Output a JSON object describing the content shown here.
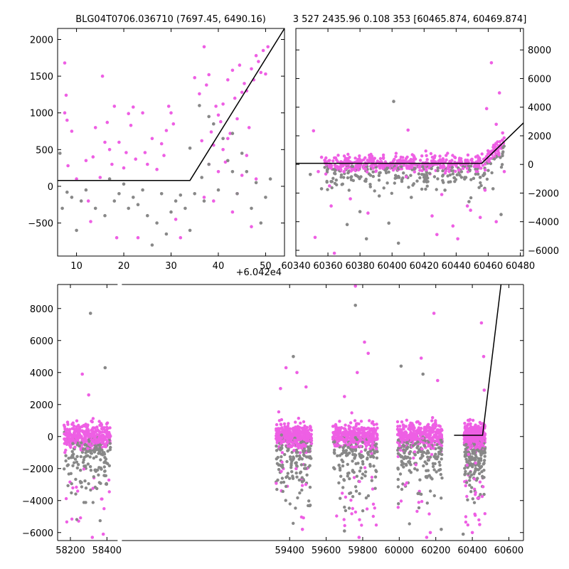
{
  "titles": {
    "left": "BLG04T0706.036710 (7697.45, 6490.16)",
    "right": "3 527 2435.96 0.108 353 [60465.874, 60469.874]"
  },
  "colors": {
    "primary": "#ee5fe4",
    "secondary": "#888888",
    "model": "#000000"
  },
  "chart_data": [
    {
      "type": "scatter",
      "panel": "zoom-left",
      "title": "BLG04T0706.036710 (7697.45, 6490.16)",
      "x_offset_label": "+6.042e4",
      "xlim": [
        6,
        54
      ],
      "ylim": [
        -950,
        2150
      ],
      "xticks": [
        10,
        20,
        30,
        40,
        50
      ],
      "xtick_labels": [
        "10",
        "20",
        "30",
        "40",
        "50"
      ],
      "yticks": [
        -500,
        0,
        500,
        1000,
        1500,
        2000
      ],
      "ytick_labels": [
        "−500",
        "0",
        "500",
        "1000",
        "1500",
        "2000"
      ],
      "model_line": {
        "x": [
          6,
          34,
          54
        ],
        "y": [
          80,
          80,
          2150
        ]
      },
      "series": [
        {
          "color": "#ee5fe4",
          "points": [
            [
              7.5,
              1680
            ],
            [
              7.5,
              1000
            ],
            [
              7.8,
              1240
            ],
            [
              8,
              900
            ],
            [
              8.2,
              280
            ],
            [
              9,
              750
            ],
            [
              10,
              100
            ],
            [
              12,
              350
            ],
            [
              12.5,
              -200
            ],
            [
              13,
              -480
            ],
            [
              13.5,
              400
            ],
            [
              14,
              800
            ],
            [
              15,
              120
            ],
            [
              15.5,
              1500
            ],
            [
              16,
              600
            ],
            [
              16.5,
              870
            ],
            [
              17,
              500
            ],
            [
              17.5,
              300
            ],
            [
              18,
              1090
            ],
            [
              18.5,
              -700
            ],
            [
              19,
              600
            ],
            [
              20,
              250
            ],
            [
              20.5,
              460
            ],
            [
              21,
              990
            ],
            [
              21.5,
              830
            ],
            [
              22,
              1080
            ],
            [
              22.5,
              370
            ],
            [
              23,
              -700
            ],
            [
              24,
              1000
            ],
            [
              24.5,
              460
            ],
            [
              25,
              300
            ],
            [
              26,
              650
            ],
            [
              27,
              230
            ],
            [
              28,
              580
            ],
            [
              28.5,
              420
            ],
            [
              29,
              760
            ],
            [
              29.5,
              1090
            ],
            [
              30,
              1000
            ],
            [
              30.5,
              850
            ],
            [
              31,
              -450
            ],
            [
              32,
              -700
            ],
            [
              35,
              1480
            ],
            [
              36,
              1260
            ],
            [
              36.5,
              620
            ],
            [
              37,
              1900
            ],
            [
              37.5,
              1380
            ],
            [
              38,
              1520
            ],
            [
              38.5,
              740
            ],
            [
              39,
              560
            ],
            [
              39.5,
              1090
            ],
            [
              40,
              970
            ],
            [
              40.5,
              880
            ],
            [
              41,
              1120
            ],
            [
              41.5,
              330
            ],
            [
              42,
              1450
            ],
            [
              42.5,
              720
            ],
            [
              43,
              1580
            ],
            [
              43.5,
              1200
            ],
            [
              44,
              920
            ],
            [
              44.5,
              1650
            ],
            [
              45,
              1280
            ],
            [
              45.5,
              1400
            ],
            [
              46,
              1300
            ],
            [
              46.5,
              800
            ],
            [
              47,
              1600
            ],
            [
              47.5,
              1450
            ],
            [
              48,
              1780
            ],
            [
              48.5,
              1700
            ],
            [
              49,
              1550
            ],
            [
              49.5,
              1850
            ],
            [
              50,
              1530
            ],
            [
              50.5,
              1900
            ],
            [
              38,
              300
            ],
            [
              39,
              -200
            ],
            [
              41,
              500
            ],
            [
              43,
              -350
            ],
            [
              45,
              150
            ],
            [
              47,
              -550
            ],
            [
              48,
              100
            ],
            [
              46,
              420
            ],
            [
              40,
              200
            ],
            [
              37,
              -150
            ],
            [
              42,
              650
            ],
            [
              44,
              -100
            ]
          ]
        },
        {
          "color": "#888888",
          "points": [
            [
              6.5,
              450
            ],
            [
              7,
              -300
            ],
            [
              8,
              -80
            ],
            [
              9,
              -150
            ],
            [
              10,
              -600
            ],
            [
              11,
              -200
            ],
            [
              12,
              -50
            ],
            [
              14,
              -300
            ],
            [
              16,
              -400
            ],
            [
              17,
              100
            ],
            [
              18,
              -200
            ],
            [
              19,
              -100
            ],
            [
              20,
              30
            ],
            [
              21,
              -300
            ],
            [
              22,
              -150
            ],
            [
              23,
              -250
            ],
            [
              24,
              -50
            ],
            [
              25,
              -400
            ],
            [
              26,
              -800
            ],
            [
              27,
              -500
            ],
            [
              28,
              -100
            ],
            [
              29,
              -650
            ],
            [
              30,
              -350
            ],
            [
              31,
              -200
            ],
            [
              32,
              -120
            ],
            [
              33,
              -300
            ],
            [
              34,
              -600
            ],
            [
              35,
              -100
            ],
            [
              36,
              1100
            ],
            [
              36.5,
              120
            ],
            [
              37,
              -200
            ],
            [
              38,
              300
            ],
            [
              39,
              850
            ],
            [
              40,
              -50
            ],
            [
              41,
              650
            ],
            [
              42,
              350
            ],
            [
              43,
              200
            ],
            [
              44,
              -100
            ],
            [
              45,
              450
            ],
            [
              46,
              200
            ],
            [
              47,
              -300
            ],
            [
              48,
              50
            ],
            [
              49,
              -500
            ],
            [
              50,
              -150
            ],
            [
              51,
              100
            ],
            [
              34,
              520
            ],
            [
              38,
              950
            ],
            [
              43,
              720
            ]
          ]
        }
      ]
    },
    {
      "type": "scatter",
      "panel": "zoom-right",
      "title": "3 527 2435.96 0.108 353 [60465.874, 60469.874]",
      "xlim": [
        60340,
        60482
      ],
      "ylim": [
        -6400,
        9500
      ],
      "xticks": [
        60340,
        60360,
        60380,
        60400,
        60420,
        60440,
        60460,
        60480
      ],
      "xtick_labels": [
        "60340",
        "60360",
        "60380",
        "60400",
        "60420",
        "60440",
        "60460",
        "60480"
      ],
      "yticks": [
        -6000,
        -4000,
        -2000,
        0,
        2000,
        4000,
        6000,
        8000
      ],
      "ytick_labels": [
        "−6000",
        "−4000",
        "−2000",
        "0",
        "2000",
        "4000",
        "6000",
        "8000"
      ],
      "y_axis_side": "right",
      "model_line": {
        "x": [
          60340,
          60456,
          60482
        ],
        "y": [
          80,
          80,
          2900
        ]
      },
      "series": [
        {
          "color": "#ee5fe4",
          "points": [
            [
              60351,
              2350
            ],
            [
              60352,
              -5100
            ],
            [
              60354,
              -500
            ],
            [
              60356,
              500
            ],
            [
              60358,
              300
            ],
            [
              60361,
              -1500
            ],
            [
              60362,
              -2900
            ],
            [
              60364,
              -6200
            ],
            [
              60370,
              -500
            ],
            [
              60374,
              -2400
            ],
            [
              60385,
              -3400
            ],
            [
              60410,
              2400
            ],
            [
              60425,
              -3600
            ],
            [
              60428,
              -4900
            ],
            [
              60431,
              -2100
            ],
            [
              60438,
              -4300
            ],
            [
              60441,
              -5200
            ],
            [
              60447,
              -2900
            ],
            [
              60449,
              -3200
            ],
            [
              60455,
              -3700
            ],
            [
              60459,
              3900
            ],
            [
              60462,
              7100
            ],
            [
              60465,
              2800
            ],
            [
              60467,
              5000
            ],
            [
              60469,
              2200
            ],
            [
              60470,
              -500
            ],
            [
              60458,
              -1800
            ],
            [
              60465,
              -4000
            ]
          ]
        },
        {
          "color": "#888888",
          "points": [
            [
              60349,
              -700
            ],
            [
              60356,
              -1700
            ],
            [
              60362,
              -1200
            ],
            [
              60372,
              -4200
            ],
            [
              60380,
              -3300
            ],
            [
              60384,
              -5200
            ],
            [
              60392,
              -2200
            ],
            [
              60398,
              -4100
            ],
            [
              60401,
              4400
            ],
            [
              60404,
              -5500
            ],
            [
              60412,
              -2300
            ],
            [
              60420,
              -1200
            ],
            [
              60433,
              -1800
            ],
            [
              60448,
              -2600
            ],
            [
              60455,
              -900
            ],
            [
              60463,
              -1700
            ],
            [
              60468,
              -3500
            ]
          ]
        }
      ]
    },
    {
      "type": "scatter",
      "panel": "full-light-curve",
      "xlim": [
        58130,
        60680
      ],
      "ylim": [
        -6500,
        9500
      ],
      "axis_break": 58470,
      "xticks": [
        58200,
        58400,
        59400,
        59600,
        59800,
        60000,
        60200,
        60400,
        60600
      ],
      "xtick_labels": [
        "58200",
        "58400",
        "59400",
        "59600",
        "59800",
        "60000",
        "60200",
        "60400",
        "60600"
      ],
      "yticks": [
        -6000,
        -4000,
        -2000,
        0,
        2000,
        4000,
        6000,
        8000
      ],
      "ytick_labels": [
        "−6000",
        "−4000",
        "−2000",
        "0",
        "2000",
        "4000",
        "6000",
        "8000"
      ],
      "model_line": {
        "x": [
          60300,
          60456,
          60680
        ],
        "y": [
          80,
          80,
          21000
        ]
      },
      "seasons": [
        {
          "start": 58165,
          "end": 58420
        },
        {
          "start": 59325,
          "end": 59520
        },
        {
          "start": 59635,
          "end": 59880
        },
        {
          "start": 59990,
          "end": 60235
        },
        {
          "start": 60355,
          "end": 60470
        }
      ],
      "series": [
        {
          "color": "#ee5fe4",
          "outliers": [
            [
              58265,
              3900
            ],
            [
              58300,
              2600
            ],
            [
              58320,
              -6300
            ],
            [
              58380,
              -6100
            ],
            [
              59350,
              3000
            ],
            [
              59380,
              4300
            ],
            [
              59440,
              4000
            ],
            [
              59470,
              -5800
            ],
            [
              59490,
              3100
            ],
            [
              59700,
              2500
            ],
            [
              59760,
              9400
            ],
            [
              59770,
              4000
            ],
            [
              59780,
              -6300
            ],
            [
              59810,
              5900
            ],
            [
              59830,
              5200
            ],
            [
              60120,
              4900
            ],
            [
              60150,
              -6300
            ],
            [
              60170,
              -6000
            ],
            [
              60190,
              7700
            ],
            [
              60210,
              3500
            ],
            [
              60400,
              -6000
            ],
            [
              60440,
              -5500
            ],
            [
              60450,
              7100
            ],
            [
              60462,
              5000
            ],
            [
              60465,
              2900
            ]
          ]
        },
        {
          "color": "#888888",
          "outliers": [
            [
              58310,
              7700
            ],
            [
              58390,
              4300
            ],
            [
              59420,
              5000
            ],
            [
              59760,
              8200
            ],
            [
              59700,
              -5900
            ],
            [
              60010,
              4400
            ],
            [
              60130,
              3900
            ],
            [
              60230,
              -5800
            ],
            [
              60350,
              -6100
            ]
          ]
        }
      ]
    }
  ]
}
